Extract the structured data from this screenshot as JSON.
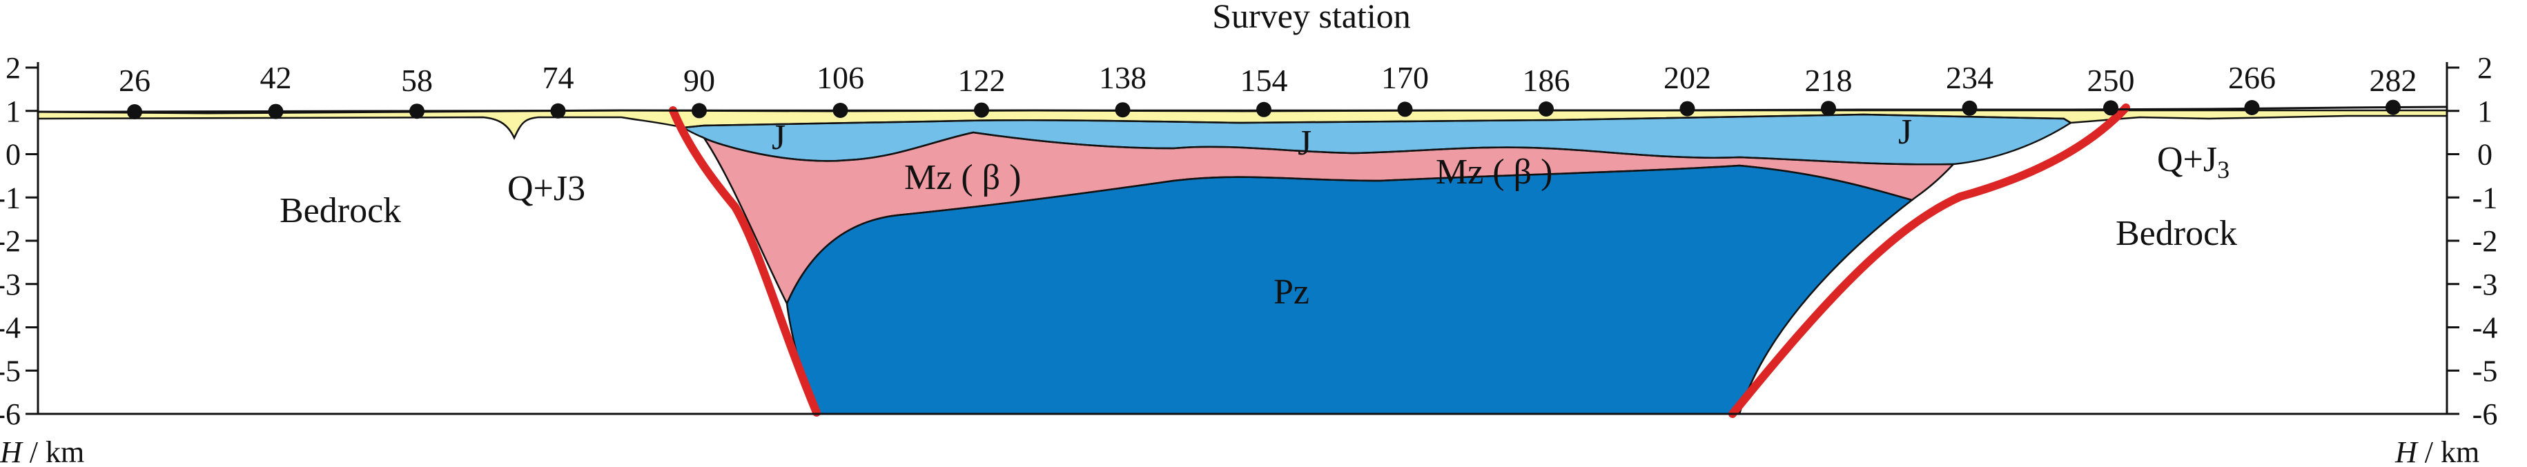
{
  "title": "Survey station",
  "y_axis": {
    "label_var": "H",
    "label_unit": " / km",
    "ticks": [
      "2",
      "1",
      "0",
      "-1",
      "-2",
      "-3",
      "-4",
      "-5",
      "-6"
    ]
  },
  "stations": [
    "26",
    "42",
    "58",
    "74",
    "90",
    "106",
    "122",
    "138",
    "154",
    "170",
    "186",
    "202",
    "218",
    "234",
    "250",
    "266",
    "282"
  ],
  "regions": {
    "bedrock_left": "Bedrock",
    "bedrock_right": "Bedrock",
    "q_j3_left": "Q+J3",
    "q_j3_right_main": "Q+J",
    "q_j3_right_sub": "3",
    "j_left": "J",
    "j_mid": "J",
    "j_right": "J",
    "mz_left": "Mz ( β )",
    "mz_right": "Mz ( β )",
    "pz": "Pz"
  },
  "colors": {
    "quaternary": "#fbf5a6",
    "jurassic": "#72c0ea",
    "mesozoic_basalt": "#ee9ba4",
    "paleozoic": "#0879c2",
    "fault": "#dc2626",
    "line": "#111111"
  }
}
